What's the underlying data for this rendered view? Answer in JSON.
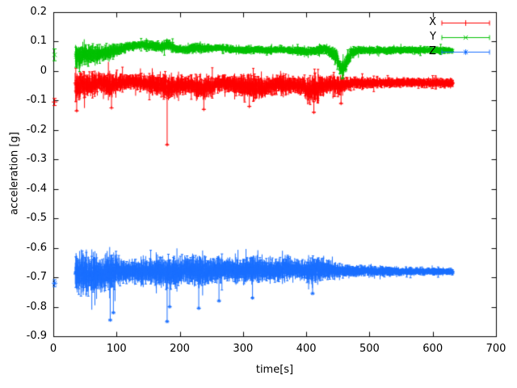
{
  "chart_data": {
    "type": "line",
    "plot_style": "errorbars",
    "title": "",
    "xlabel": "time[s]",
    "ylabel": "acceleration [g]",
    "xlim": [
      0,
      700
    ],
    "ylim": [
      -0.9,
      0.2
    ],
    "xticks": [
      0,
      100,
      200,
      300,
      400,
      500,
      600,
      700
    ],
    "xtick_labels": [
      "0",
      "100",
      "200",
      "300",
      "400",
      "500",
      "600",
      "700"
    ],
    "yticks": [
      0.2,
      0.1,
      0,
      -0.1,
      -0.2,
      -0.3,
      -0.4,
      -0.5,
      -0.6,
      -0.7,
      -0.8,
      -0.9
    ],
    "ytick_labels": [
      "0.2",
      "0.1",
      "0",
      "-0.1",
      "-0.2",
      "-0.3",
      "-0.4",
      "-0.5",
      "-0.6",
      "-0.7",
      "-0.8",
      "-0.9"
    ],
    "grid": false,
    "background": "#ffffff",
    "axis_color": "#000000",
    "legend": {
      "position": "top-right",
      "entries": [
        "X",
        "Y",
        "Z"
      ]
    },
    "series": [
      {
        "name": "X",
        "color": "#ff0000",
        "marker": "plus",
        "initial_point": {
          "t": 2,
          "y": -0.105,
          "err": 0.012
        },
        "t_start": 35,
        "t_end": 632,
        "envelope": [
          [
            35,
            -0.055,
            0.05
          ],
          [
            45,
            -0.05,
            0.045
          ],
          [
            60,
            -0.045,
            0.04
          ],
          [
            75,
            -0.04,
            0.035
          ],
          [
            90,
            -0.05,
            0.045
          ],
          [
            105,
            -0.04,
            0.03
          ],
          [
            125,
            -0.035,
            0.025
          ],
          [
            145,
            -0.04,
            0.03
          ],
          [
            165,
            -0.045,
            0.035
          ],
          [
            180,
            -0.055,
            0.05
          ],
          [
            195,
            -0.05,
            0.035
          ],
          [
            215,
            -0.045,
            0.03
          ],
          [
            232,
            -0.06,
            0.045
          ],
          [
            250,
            -0.05,
            0.035
          ],
          [
            265,
            -0.04,
            0.028
          ],
          [
            285,
            -0.045,
            0.03
          ],
          [
            302,
            -0.055,
            0.04
          ],
          [
            318,
            -0.05,
            0.045
          ],
          [
            332,
            -0.06,
            0.04
          ],
          [
            348,
            -0.045,
            0.03
          ],
          [
            362,
            -0.05,
            0.035
          ],
          [
            378,
            -0.045,
            0.028
          ],
          [
            395,
            -0.05,
            0.035
          ],
          [
            408,
            -0.065,
            0.05
          ],
          [
            420,
            -0.055,
            0.04
          ],
          [
            435,
            -0.045,
            0.028
          ],
          [
            450,
            -0.05,
            0.038
          ],
          [
            462,
            -0.045,
            0.025
          ],
          [
            480,
            -0.04,
            0.02
          ],
          [
            510,
            -0.04,
            0.017
          ],
          [
            560,
            -0.039,
            0.015
          ],
          [
            632,
            -0.04,
            0.015
          ]
        ],
        "outliers": [
          [
            37,
            -0.135
          ],
          [
            92,
            -0.125
          ],
          [
            180,
            -0.25
          ],
          [
            238,
            -0.13
          ],
          [
            310,
            -0.12
          ],
          [
            412,
            -0.14
          ],
          [
            455,
            -0.11
          ]
        ]
      },
      {
        "name": "Y",
        "color": "#00c000",
        "marker": "cross",
        "initial_point": {
          "t": 2,
          "y": 0.055,
          "err": 0.02
        },
        "t_start": 35,
        "t_end": 632,
        "envelope": [
          [
            35,
            0.05,
            0.045
          ],
          [
            45,
            0.055,
            0.04
          ],
          [
            60,
            0.055,
            0.035
          ],
          [
            75,
            0.06,
            0.03
          ],
          [
            90,
            0.065,
            0.028
          ],
          [
            105,
            0.075,
            0.02
          ],
          [
            125,
            0.085,
            0.015
          ],
          [
            140,
            0.09,
            0.014
          ],
          [
            155,
            0.085,
            0.016
          ],
          [
            170,
            0.082,
            0.018
          ],
          [
            182,
            0.09,
            0.018
          ],
          [
            195,
            0.075,
            0.014
          ],
          [
            210,
            0.072,
            0.014
          ],
          [
            225,
            0.08,
            0.018
          ],
          [
            240,
            0.076,
            0.014
          ],
          [
            260,
            0.08,
            0.012
          ],
          [
            280,
            0.075,
            0.012
          ],
          [
            300,
            0.07,
            0.014
          ],
          [
            320,
            0.074,
            0.012
          ],
          [
            340,
            0.07,
            0.012
          ],
          [
            360,
            0.074,
            0.012
          ],
          [
            380,
            0.07,
            0.012
          ],
          [
            400,
            0.066,
            0.014
          ],
          [
            418,
            0.07,
            0.018
          ],
          [
            432,
            0.075,
            0.015
          ],
          [
            448,
            0.045,
            0.03
          ],
          [
            456,
            0.005,
            0.025
          ],
          [
            462,
            0.02,
            0.03
          ],
          [
            470,
            0.06,
            0.025
          ],
          [
            480,
            0.07,
            0.014
          ],
          [
            510,
            0.07,
            0.012
          ],
          [
            560,
            0.071,
            0.012
          ],
          [
            632,
            0.07,
            0.012
          ]
        ],
        "outliers": [
          [
            457,
            -0.025
          ]
        ]
      },
      {
        "name": "Z",
        "color": "#1a6fff",
        "marker": "star",
        "initial_point": {
          "t": 2,
          "y": -0.72,
          "err": 0.012
        },
        "t_start": 35,
        "t_end": 632,
        "envelope": [
          [
            35,
            -0.69,
            0.065
          ],
          [
            45,
            -0.69,
            0.075
          ],
          [
            58,
            -0.685,
            0.07
          ],
          [
            70,
            -0.69,
            0.06
          ],
          [
            82,
            -0.685,
            0.06
          ],
          [
            95,
            -0.68,
            0.065
          ],
          [
            108,
            -0.68,
            0.045
          ],
          [
            125,
            -0.68,
            0.035
          ],
          [
            142,
            -0.68,
            0.04
          ],
          [
            158,
            -0.68,
            0.045
          ],
          [
            172,
            -0.68,
            0.05
          ],
          [
            185,
            -0.685,
            0.055
          ],
          [
            200,
            -0.68,
            0.05
          ],
          [
            215,
            -0.672,
            0.05
          ],
          [
            230,
            -0.678,
            0.055
          ],
          [
            245,
            -0.678,
            0.048
          ],
          [
            262,
            -0.672,
            0.045
          ],
          [
            280,
            -0.676,
            0.04
          ],
          [
            298,
            -0.678,
            0.035
          ],
          [
            315,
            -0.67,
            0.048
          ],
          [
            330,
            -0.676,
            0.04
          ],
          [
            350,
            -0.676,
            0.035
          ],
          [
            368,
            -0.67,
            0.04
          ],
          [
            388,
            -0.676,
            0.035
          ],
          [
            408,
            -0.676,
            0.04
          ],
          [
            424,
            -0.67,
            0.045
          ],
          [
            440,
            -0.676,
            0.03
          ],
          [
            458,
            -0.678,
            0.024
          ],
          [
            478,
            -0.678,
            0.02
          ],
          [
            505,
            -0.679,
            0.018
          ],
          [
            545,
            -0.68,
            0.015
          ],
          [
            590,
            -0.68,
            0.013
          ],
          [
            632,
            -0.68,
            0.012
          ]
        ],
        "outliers": [
          [
            90,
            -0.845
          ],
          [
            95,
            -0.82
          ],
          [
            180,
            -0.85
          ],
          [
            184,
            -0.8
          ],
          [
            230,
            -0.805
          ],
          [
            262,
            -0.78
          ],
          [
            315,
            -0.77
          ],
          [
            410,
            -0.755
          ]
        ]
      }
    ]
  }
}
